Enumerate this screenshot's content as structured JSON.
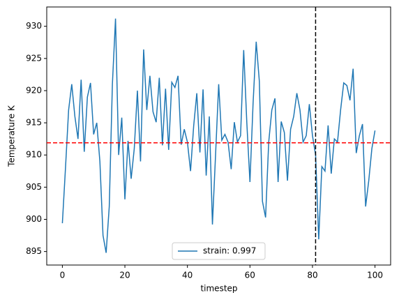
{
  "chart_data": {
    "type": "line",
    "xlabel": "timestep",
    "ylabel": "Temperature K",
    "x": [
      0,
      1,
      2,
      3,
      4,
      5,
      6,
      7,
      8,
      9,
      10,
      11,
      12,
      13,
      14,
      15,
      16,
      17,
      18,
      19,
      20,
      21,
      22,
      23,
      24,
      25,
      26,
      27,
      28,
      29,
      30,
      31,
      32,
      33,
      34,
      35,
      36,
      37,
      38,
      39,
      40,
      41,
      42,
      43,
      44,
      45,
      46,
      47,
      48,
      49,
      50,
      51,
      52,
      53,
      54,
      55,
      56,
      57,
      58,
      59,
      60,
      61,
      62,
      63,
      64,
      65,
      66,
      67,
      68,
      69,
      70,
      71,
      72,
      73,
      74,
      75,
      76,
      77,
      78,
      79,
      80,
      81,
      82,
      83,
      84,
      85,
      86,
      87,
      88,
      89,
      90,
      91,
      92,
      93,
      94,
      95,
      96,
      97,
      98,
      99,
      100
    ],
    "series": [
      {
        "name": "strain: 0.997",
        "color": "#1f77b4",
        "values": [
          899.4,
          908,
          917,
          921,
          916,
          912.5,
          921.7,
          910.5,
          919,
          921.2,
          913.2,
          915,
          909,
          897.5,
          894.8,
          902,
          921,
          931.2,
          910,
          915.8,
          903.1,
          912.2,
          906.3,
          911,
          920,
          909,
          926.4,
          917,
          922.3,
          916.7,
          915.1,
          922,
          911.5,
          920.3,
          910.8,
          921.3,
          920.5,
          922.3,
          911.6,
          914,
          912,
          907.5,
          914.5,
          919.6,
          910.4,
          920.2,
          906.8,
          916,
          899.2,
          910,
          921,
          912.3,
          913.2,
          912,
          907.8,
          915.1,
          912,
          913,
          926.3,
          915,
          905.8,
          918,
          927.6,
          921.5,
          902.8,
          900.3,
          912,
          917,
          918.8,
          905.8,
          915.2,
          913.5,
          906,
          914,
          916,
          919.6,
          917,
          912,
          913,
          917.9,
          913,
          910,
          896.9,
          908.2,
          907.5,
          914.6,
          907.1,
          912.5,
          912,
          917,
          921.2,
          920.8,
          918.5,
          923.4,
          910.3,
          913,
          914.8,
          902,
          906,
          911,
          913.8
        ]
      }
    ],
    "reference_lines": [
      {
        "axis": "y",
        "value": 911.9,
        "color": "#ff0000"
      },
      {
        "axis": "x",
        "value": 81,
        "color": "#000000"
      }
    ],
    "xlim": [
      -5,
      105
    ],
    "xticks": [
      0,
      20,
      40,
      60,
      80,
      100
    ],
    "ylim": [
      892.9,
      933
    ],
    "yticks": [
      895,
      900,
      905,
      910,
      915,
      920,
      925,
      930
    ],
    "legend": "lower center"
  }
}
